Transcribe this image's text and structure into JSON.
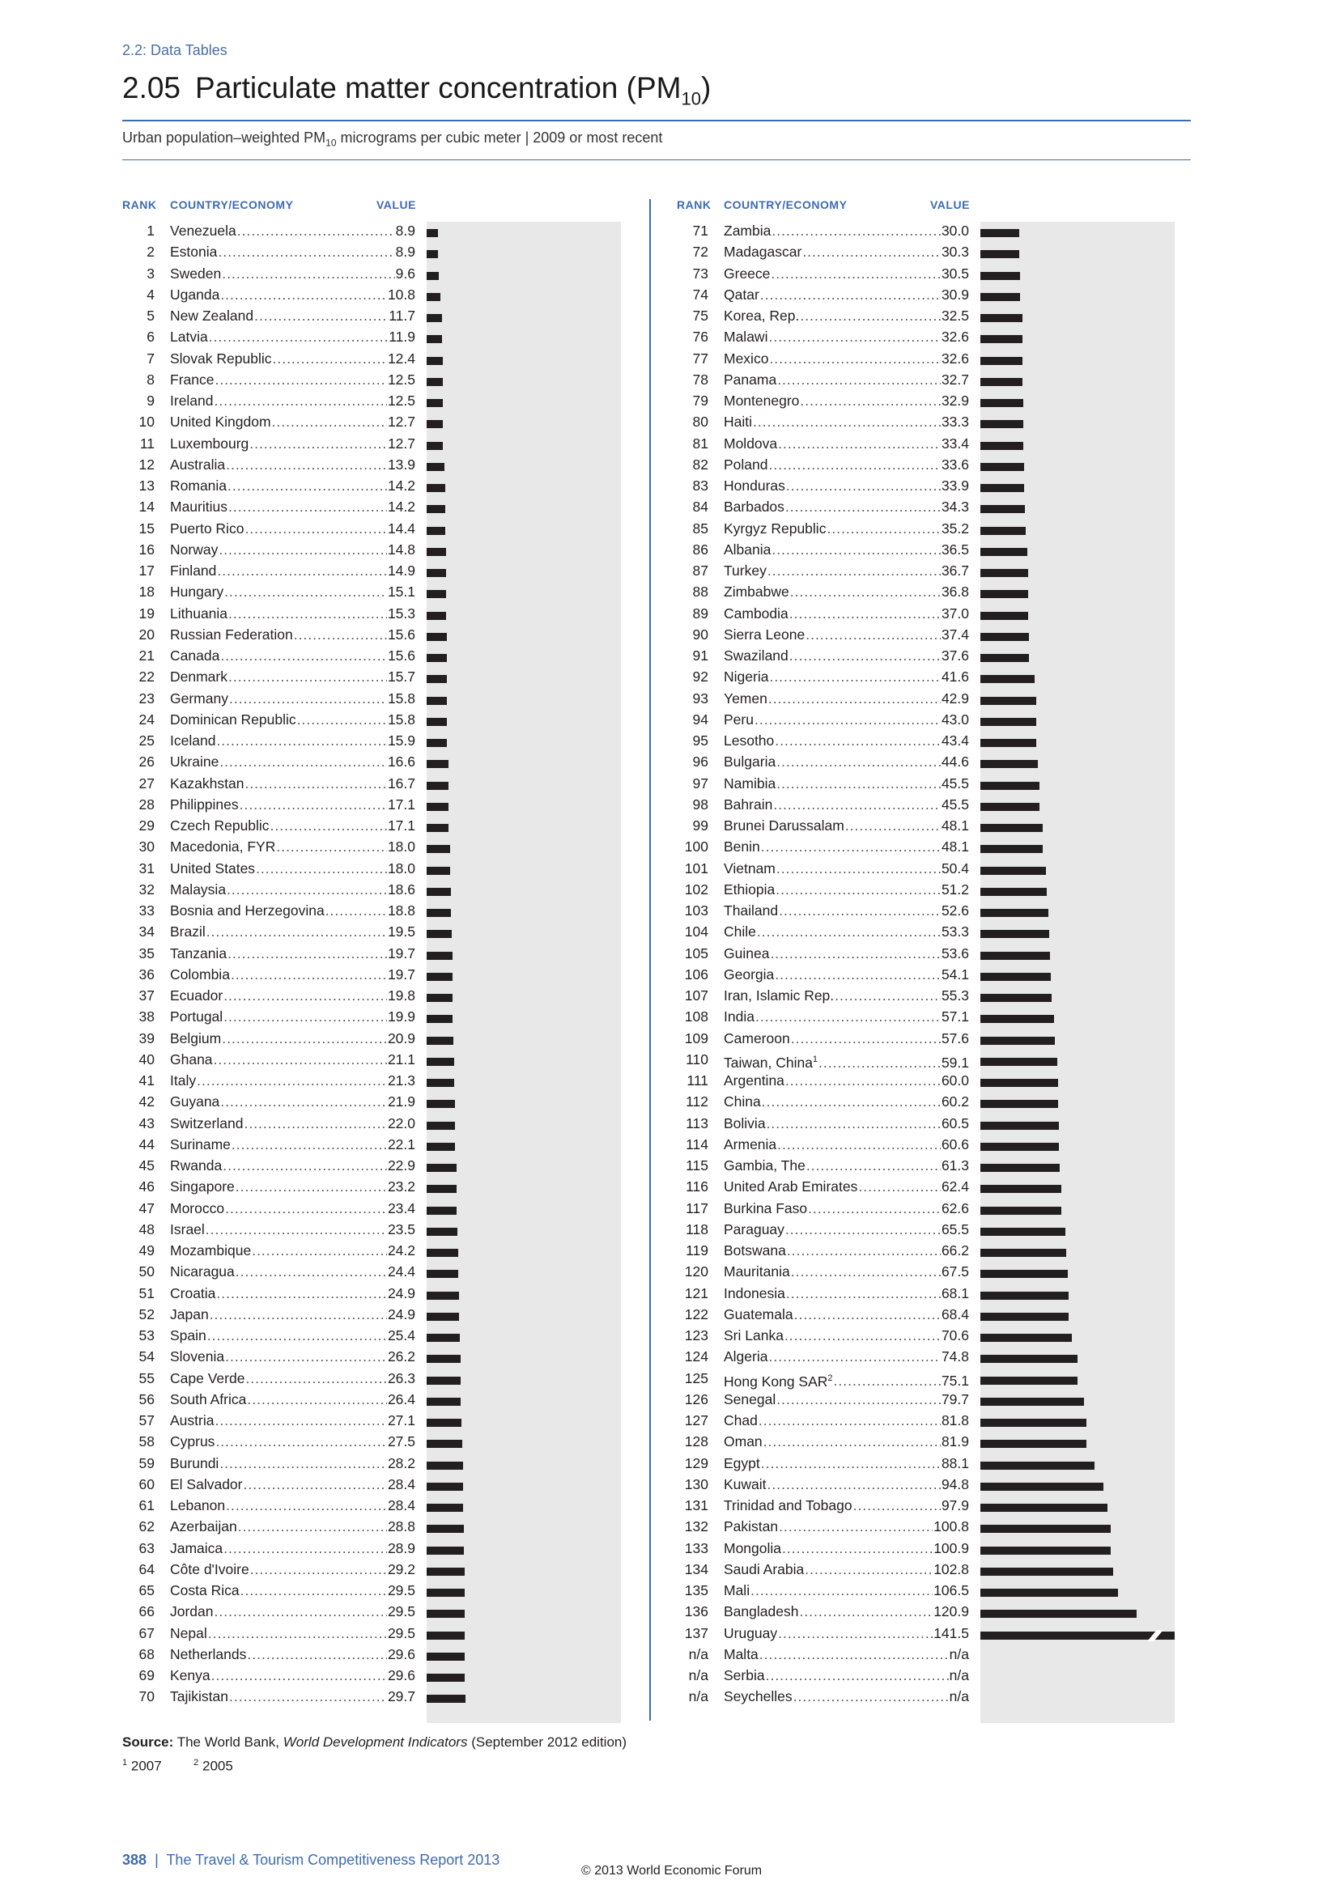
{
  "section": "2.2: Data Tables",
  "title": {
    "number": "2.05",
    "text": "Particulate matter concentration (PM",
    "sub": "10",
    "close": ")"
  },
  "subtitle": {
    "pre": "Urban population–weighted PM",
    "sub": "10",
    "post": " micrograms per cubic meter | 2009 or most recent"
  },
  "headers": {
    "rank": "RANK",
    "country": "COUNTRY/ECONOMY",
    "value": "VALUE"
  },
  "bar_scale_max": 150,
  "left_rows": [
    {
      "rank": "1",
      "country": "Venezuela",
      "value": "8.9"
    },
    {
      "rank": "2",
      "country": "Estonia",
      "value": "8.9"
    },
    {
      "rank": "3",
      "country": "Sweden",
      "value": "9.6"
    },
    {
      "rank": "4",
      "country": "Uganda",
      "value": "10.8"
    },
    {
      "rank": "5",
      "country": "New Zealand",
      "value": "11.7"
    },
    {
      "rank": "6",
      "country": "Latvia",
      "value": "11.9"
    },
    {
      "rank": "7",
      "country": "Slovak Republic",
      "value": "12.4"
    },
    {
      "rank": "8",
      "country": "France",
      "value": "12.5"
    },
    {
      "rank": "9",
      "country": "Ireland",
      "value": "12.5"
    },
    {
      "rank": "10",
      "country": "United Kingdom",
      "value": "12.7"
    },
    {
      "rank": "11",
      "country": "Luxembourg",
      "value": "12.7"
    },
    {
      "rank": "12",
      "country": "Australia",
      "value": "13.9"
    },
    {
      "rank": "13",
      "country": "Romania",
      "value": "14.2"
    },
    {
      "rank": "14",
      "country": "Mauritius",
      "value": "14.2"
    },
    {
      "rank": "15",
      "country": "Puerto Rico",
      "value": "14.4"
    },
    {
      "rank": "16",
      "country": "Norway",
      "value": "14.8"
    },
    {
      "rank": "17",
      "country": "Finland",
      "value": "14.9"
    },
    {
      "rank": "18",
      "country": "Hungary",
      "value": "15.1"
    },
    {
      "rank": "19",
      "country": "Lithuania",
      "value": "15.3"
    },
    {
      "rank": "20",
      "country": "Russian Federation",
      "value": "15.6"
    },
    {
      "rank": "21",
      "country": "Canada",
      "value": "15.6"
    },
    {
      "rank": "22",
      "country": "Denmark",
      "value": "15.7"
    },
    {
      "rank": "23",
      "country": "Germany",
      "value": "15.8"
    },
    {
      "rank": "24",
      "country": "Dominican Republic",
      "value": "15.8"
    },
    {
      "rank": "25",
      "country": "Iceland",
      "value": "15.9"
    },
    {
      "rank": "26",
      "country": "Ukraine",
      "value": "16.6"
    },
    {
      "rank": "27",
      "country": "Kazakhstan",
      "value": "16.7"
    },
    {
      "rank": "28",
      "country": "Philippines",
      "value": "17.1"
    },
    {
      "rank": "29",
      "country": "Czech Republic",
      "value": "17.1"
    },
    {
      "rank": "30",
      "country": "Macedonia, FYR",
      "value": "18.0"
    },
    {
      "rank": "31",
      "country": "United States",
      "value": "18.0"
    },
    {
      "rank": "32",
      "country": "Malaysia",
      "value": "18.6"
    },
    {
      "rank": "33",
      "country": "Bosnia and Herzegovina",
      "value": "18.8"
    },
    {
      "rank": "34",
      "country": "Brazil",
      "value": "19.5"
    },
    {
      "rank": "35",
      "country": "Tanzania",
      "value": "19.7"
    },
    {
      "rank": "36",
      "country": "Colombia",
      "value": "19.7"
    },
    {
      "rank": "37",
      "country": "Ecuador",
      "value": "19.8"
    },
    {
      "rank": "38",
      "country": "Portugal",
      "value": "19.9"
    },
    {
      "rank": "39",
      "country": "Belgium",
      "value": "20.9"
    },
    {
      "rank": "40",
      "country": "Ghana",
      "value": "21.1"
    },
    {
      "rank": "41",
      "country": "Italy",
      "value": "21.3"
    },
    {
      "rank": "42",
      "country": "Guyana",
      "value": "21.9"
    },
    {
      "rank": "43",
      "country": "Switzerland",
      "value": "22.0"
    },
    {
      "rank": "44",
      "country": "Suriname",
      "value": "22.1"
    },
    {
      "rank": "45",
      "country": "Rwanda",
      "value": "22.9"
    },
    {
      "rank": "46",
      "country": "Singapore",
      "value": "23.2"
    },
    {
      "rank": "47",
      "country": "Morocco",
      "value": "23.4"
    },
    {
      "rank": "48",
      "country": "Israel",
      "value": "23.5"
    },
    {
      "rank": "49",
      "country": "Mozambique",
      "value": "24.2"
    },
    {
      "rank": "50",
      "country": "Nicaragua",
      "value": "24.4"
    },
    {
      "rank": "51",
      "country": "Croatia",
      "value": "24.9"
    },
    {
      "rank": "52",
      "country": "Japan",
      "value": "24.9"
    },
    {
      "rank": "53",
      "country": "Spain",
      "value": "25.4"
    },
    {
      "rank": "54",
      "country": "Slovenia",
      "value": "26.2"
    },
    {
      "rank": "55",
      "country": "Cape Verde",
      "value": "26.3"
    },
    {
      "rank": "56",
      "country": "South Africa",
      "value": "26.4"
    },
    {
      "rank": "57",
      "country": "Austria",
      "value": "27.1"
    },
    {
      "rank": "58",
      "country": "Cyprus",
      "value": "27.5"
    },
    {
      "rank": "59",
      "country": "Burundi",
      "value": "28.2"
    },
    {
      "rank": "60",
      "country": "El Salvador",
      "value": "28.4"
    },
    {
      "rank": "61",
      "country": "Lebanon",
      "value": "28.4"
    },
    {
      "rank": "62",
      "country": "Azerbaijan",
      "value": "28.8"
    },
    {
      "rank": "63",
      "country": "Jamaica",
      "value": "28.9"
    },
    {
      "rank": "64",
      "country": "Côte d'Ivoire",
      "value": "29.2"
    },
    {
      "rank": "65",
      "country": "Costa Rica",
      "value": "29.5"
    },
    {
      "rank": "66",
      "country": "Jordan",
      "value": "29.5"
    },
    {
      "rank": "67",
      "country": "Nepal",
      "value": "29.5"
    },
    {
      "rank": "68",
      "country": "Netherlands",
      "value": "29.6"
    },
    {
      "rank": "69",
      "country": "Kenya",
      "value": "29.6"
    },
    {
      "rank": "70",
      "country": "Tajikistan",
      "value": "29.7"
    }
  ],
  "right_rows": [
    {
      "rank": "71",
      "country": "Zambia",
      "value": "30.0"
    },
    {
      "rank": "72",
      "country": "Madagascar",
      "value": "30.3"
    },
    {
      "rank": "73",
      "country": "Greece",
      "value": "30.5"
    },
    {
      "rank": "74",
      "country": "Qatar",
      "value": "30.9"
    },
    {
      "rank": "75",
      "country": "Korea, Rep.",
      "value": "32.5"
    },
    {
      "rank": "76",
      "country": "Malawi",
      "value": "32.6"
    },
    {
      "rank": "77",
      "country": "Mexico",
      "value": "32.6"
    },
    {
      "rank": "78",
      "country": "Panama",
      "value": "32.7"
    },
    {
      "rank": "79",
      "country": "Montenegro",
      "value": "32.9"
    },
    {
      "rank": "80",
      "country": "Haiti",
      "value": "33.3"
    },
    {
      "rank": "81",
      "country": "Moldova",
      "value": "33.4"
    },
    {
      "rank": "82",
      "country": "Poland",
      "value": "33.6"
    },
    {
      "rank": "83",
      "country": "Honduras",
      "value": "33.9"
    },
    {
      "rank": "84",
      "country": "Barbados",
      "value": "34.3"
    },
    {
      "rank": "85",
      "country": "Kyrgyz Republic",
      "value": "35.2"
    },
    {
      "rank": "86",
      "country": "Albania",
      "value": "36.5"
    },
    {
      "rank": "87",
      "country": "Turkey",
      "value": "36.7"
    },
    {
      "rank": "88",
      "country": "Zimbabwe",
      "value": "36.8"
    },
    {
      "rank": "89",
      "country": "Cambodia",
      "value": "37.0"
    },
    {
      "rank": "90",
      "country": "Sierra Leone",
      "value": "37.4"
    },
    {
      "rank": "91",
      "country": "Swaziland",
      "value": "37.6"
    },
    {
      "rank": "92",
      "country": "Nigeria",
      "value": "41.6"
    },
    {
      "rank": "93",
      "country": "Yemen",
      "value": "42.9"
    },
    {
      "rank": "94",
      "country": "Peru",
      "value": "43.0"
    },
    {
      "rank": "95",
      "country": "Lesotho",
      "value": "43.4"
    },
    {
      "rank": "96",
      "country": "Bulgaria",
      "value": "44.6"
    },
    {
      "rank": "97",
      "country": "Namibia",
      "value": "45.5"
    },
    {
      "rank": "98",
      "country": "Bahrain",
      "value": "45.5"
    },
    {
      "rank": "99",
      "country": "Brunei Darussalam",
      "value": "48.1"
    },
    {
      "rank": "100",
      "country": "Benin",
      "value": "48.1"
    },
    {
      "rank": "101",
      "country": "Vietnam",
      "value": "50.4"
    },
    {
      "rank": "102",
      "country": "Ethiopia",
      "value": "51.2"
    },
    {
      "rank": "103",
      "country": "Thailand",
      "value": "52.6"
    },
    {
      "rank": "104",
      "country": "Chile",
      "value": "53.3"
    },
    {
      "rank": "105",
      "country": "Guinea",
      "value": "53.6"
    },
    {
      "rank": "106",
      "country": "Georgia",
      "value": "54.1"
    },
    {
      "rank": "107",
      "country": "Iran, Islamic Rep.",
      "value": "55.3"
    },
    {
      "rank": "108",
      "country": "India",
      "value": "57.1"
    },
    {
      "rank": "109",
      "country": "Cameroon",
      "value": "57.6"
    },
    {
      "rank": "110",
      "country": "Taiwan, China",
      "sup": "1",
      "value": "59.1"
    },
    {
      "rank": "111",
      "country": "Argentina",
      "value": "60.0"
    },
    {
      "rank": "112",
      "country": "China",
      "value": "60.2"
    },
    {
      "rank": "113",
      "country": "Bolivia",
      "value": "60.5"
    },
    {
      "rank": "114",
      "country": "Armenia",
      "value": "60.6"
    },
    {
      "rank": "115",
      "country": "Gambia, The",
      "value": "61.3"
    },
    {
      "rank": "116",
      "country": "United Arab Emirates",
      "value": "62.4"
    },
    {
      "rank": "117",
      "country": "Burkina Faso",
      "value": "62.6"
    },
    {
      "rank": "118",
      "country": "Paraguay",
      "value": "65.5"
    },
    {
      "rank": "119",
      "country": "Botswana",
      "value": "66.2"
    },
    {
      "rank": "120",
      "country": "Mauritania",
      "value": "67.5"
    },
    {
      "rank": "121",
      "country": "Indonesia",
      "value": "68.1"
    },
    {
      "rank": "122",
      "country": "Guatemala",
      "value": "68.4"
    },
    {
      "rank": "123",
      "country": "Sri Lanka",
      "value": "70.6"
    },
    {
      "rank": "124",
      "country": "Algeria",
      "value": "74.8"
    },
    {
      "rank": "125",
      "country": "Hong Kong SAR",
      "sup": "2",
      "value": "75.1"
    },
    {
      "rank": "126",
      "country": "Senegal",
      "value": "79.7"
    },
    {
      "rank": "127",
      "country": "Chad",
      "value": "81.8"
    },
    {
      "rank": "128",
      "country": "Oman",
      "value": "81.9"
    },
    {
      "rank": "129",
      "country": "Egypt",
      "value": "88.1"
    },
    {
      "rank": "130",
      "country": "Kuwait",
      "value": "94.8"
    },
    {
      "rank": "131",
      "country": "Trinidad and Tobago",
      "value": "97.9"
    },
    {
      "rank": "132",
      "country": "Pakistan",
      "value": "100.8"
    },
    {
      "rank": "133",
      "country": "Mongolia",
      "value": "100.9"
    },
    {
      "rank": "134",
      "country": "Saudi Arabia",
      "value": "102.8"
    },
    {
      "rank": "135",
      "country": "Mali",
      "value": "106.5"
    },
    {
      "rank": "136",
      "country": "Bangladesh",
      "value": "120.9"
    },
    {
      "rank": "137",
      "country": "Uruguay",
      "value": "141.5",
      "broken": true
    },
    {
      "rank": "n/a",
      "country": "Malta",
      "value": "n/a"
    },
    {
      "rank": "n/a",
      "country": "Serbia",
      "value": "n/a"
    },
    {
      "rank": "n/a",
      "country": "Seychelles",
      "value": "n/a"
    }
  ],
  "source": {
    "label": "Source:",
    "pre": "The World Bank, ",
    "italic": "World Development Indicators",
    "post": " (September 2012 edition)"
  },
  "footnotes": [
    {
      "sup": "1",
      "text": "2007"
    },
    {
      "sup": "2",
      "text": "2005"
    }
  ],
  "page_number": "388",
  "report": "The Travel & Tourism Competitiveness Report 2013",
  "copyright": "© 2013 World Economic Forum"
}
